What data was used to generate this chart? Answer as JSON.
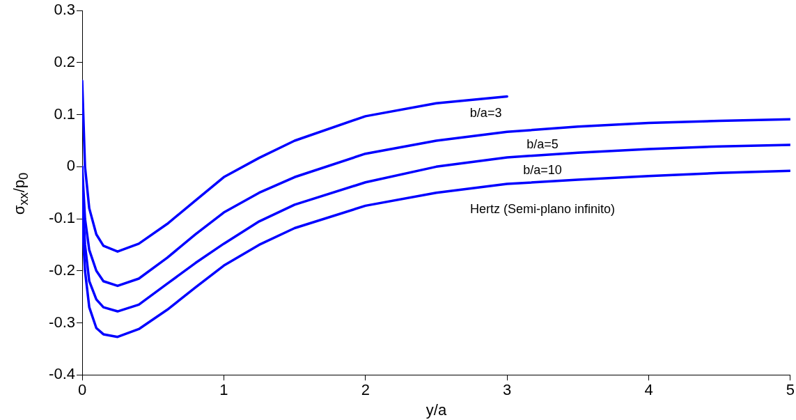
{
  "chart_data": {
    "type": "line",
    "xlabel": "y/a",
    "ylabel": "σ$_{xx}$/p$_{0}$",
    "xlim": [
      0,
      5
    ],
    "xticks": [
      0,
      1,
      2,
      3,
      4,
      5
    ],
    "ylim": [
      -0.4,
      0.3
    ],
    "yticks": [
      -0.4,
      -0.3,
      -0.2,
      -0.1,
      0,
      0.1,
      0.2,
      0.3
    ],
    "grid": false,
    "legend": false,
    "marker": "none",
    "line_style": "solid",
    "series": [
      {
        "name": "b/a=3",
        "color": "#0000ff",
        "x": [
          0,
          0.02,
          0.05,
          0.1,
          0.15,
          0.25,
          0.4,
          0.6,
          0.8,
          1,
          1.25,
          1.5,
          2,
          2.5,
          3
        ],
        "values": [
          0.165,
          0.0,
          -0.08,
          -0.13,
          -0.152,
          -0.163,
          -0.148,
          -0.11,
          -0.065,
          -0.02,
          0.017,
          0.05,
          0.097,
          0.122,
          0.135
        ]
      },
      {
        "name": "b/a=5",
        "color": "#0000ff",
        "x": [
          0,
          0.02,
          0.05,
          0.1,
          0.15,
          0.25,
          0.4,
          0.6,
          0.8,
          1,
          1.25,
          1.5,
          2,
          2.5,
          3,
          3.5,
          4,
          4.5,
          5
        ],
        "values": [
          0.0,
          -0.1,
          -0.16,
          -0.2,
          -0.22,
          -0.229,
          -0.215,
          -0.175,
          -0.13,
          -0.088,
          -0.05,
          -0.02,
          0.025,
          0.05,
          0.067,
          0.077,
          0.084,
          0.088,
          0.091
        ]
      },
      {
        "name": "b/a=10",
        "color": "#0000ff",
        "x": [
          0,
          0.02,
          0.05,
          0.1,
          0.15,
          0.25,
          0.4,
          0.6,
          0.8,
          1,
          1.25,
          1.5,
          2,
          2.5,
          3,
          3.5,
          4,
          4.5,
          5
        ],
        "values": [
          -0.05,
          -0.15,
          -0.22,
          -0.255,
          -0.27,
          -0.278,
          -0.265,
          -0.225,
          -0.185,
          -0.148,
          -0.105,
          -0.073,
          -0.03,
          0.0,
          0.018,
          0.027,
          0.034,
          0.039,
          0.042
        ]
      },
      {
        "name": "Hertz (Semi-plano infinito)",
        "color": "#0000ff",
        "x": [
          0,
          0.02,
          0.05,
          0.1,
          0.15,
          0.25,
          0.4,
          0.6,
          0.8,
          1,
          1.25,
          1.5,
          2,
          2.5,
          3,
          3.5,
          4,
          4.5,
          5
        ],
        "values": [
          -0.1,
          -0.2,
          -0.27,
          -0.31,
          -0.322,
          -0.327,
          -0.312,
          -0.275,
          -0.232,
          -0.19,
          -0.15,
          -0.118,
          -0.075,
          -0.05,
          -0.033,
          -0.025,
          -0.018,
          -0.012,
          -0.008
        ]
      }
    ]
  }
}
